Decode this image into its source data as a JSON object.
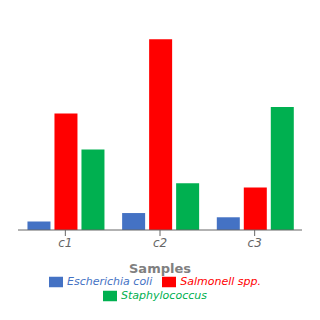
{
  "chart_data": {
    "type": "bar",
    "x_label": "Samples",
    "categories": [
      "c1",
      "c2",
      "c3"
    ],
    "series": [
      {
        "name": "Escherichia coli",
        "color": "#4472C4",
        "values": [
          4,
          8,
          6
        ]
      },
      {
        "name": "Salmonell spp.",
        "color": "#FF0000",
        "values": [
          55,
          90,
          20
        ]
      },
      {
        "name": "Staphylococcus",
        "color": "#00B050",
        "values": [
          38,
          22,
          58
        ]
      }
    ],
    "ylim": [
      0,
      100
    ],
    "yticks": [
      0,
      20,
      40,
      60,
      80,
      100
    ],
    "grid": false,
    "tick_labels": "x",
    "legend": "bottom"
  }
}
